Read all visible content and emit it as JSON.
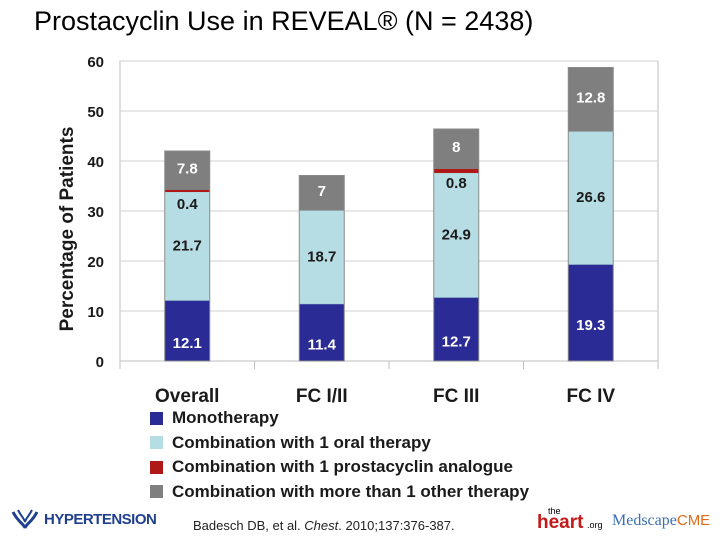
{
  "title": "Prostacyclin Use in REVEAL® (N = 2438)",
  "chart_data": {
    "type": "bar",
    "stacked": true,
    "categories": [
      "Overall",
      "FC I/II",
      "FC III",
      "FC IV"
    ],
    "ylabel": "Percentage of Patients",
    "ylim": [
      0,
      60
    ],
    "yticks": [
      0,
      10,
      20,
      30,
      40,
      50,
      60
    ],
    "grid": true,
    "legend_position": "bottom",
    "series": [
      {
        "name": "Monotherapy",
        "color": "#2b2b96",
        "values": [
          12.1,
          11.4,
          12.7,
          19.3
        ],
        "labels": [
          "12.1",
          "11.4",
          "12.7",
          "19.3"
        ],
        "label_color": "#ffffff"
      },
      {
        "name": "Combination with 1 oral therapy",
        "color": "#b7dde4",
        "values": [
          21.7,
          18.7,
          24.9,
          26.6
        ],
        "labels": [
          "21.7",
          "18.7",
          "24.9",
          "26.6"
        ],
        "label_color": "#1a1a1a"
      },
      {
        "name": "Combination with 1 prostacyclin analogue",
        "color": "#b01818",
        "values": [
          0.4,
          0,
          0.8,
          0
        ],
        "labels": [
          "0.4",
          "",
          "0.8",
          ""
        ],
        "label_color": "#1a1a1a"
      },
      {
        "name": "Combination with more than 1 other therapy",
        "color": "#7f7f7f",
        "values": [
          7.8,
          7,
          8,
          12.8
        ],
        "labels": [
          "7.8",
          "7",
          "8",
          "12.8"
        ],
        "label_color": "#ffffff"
      }
    ]
  },
  "footer": {
    "left_logo_text": "HYPERTENSION",
    "citation_pre": "Badesch DB, et al. ",
    "citation_journal": "Chest",
    "citation_post": ". 2010;137:376-387.",
    "heart_the": "the",
    "heart_word": "heart",
    "heart_org": ".org",
    "medscape": "Medscape",
    "cme": "CME"
  }
}
